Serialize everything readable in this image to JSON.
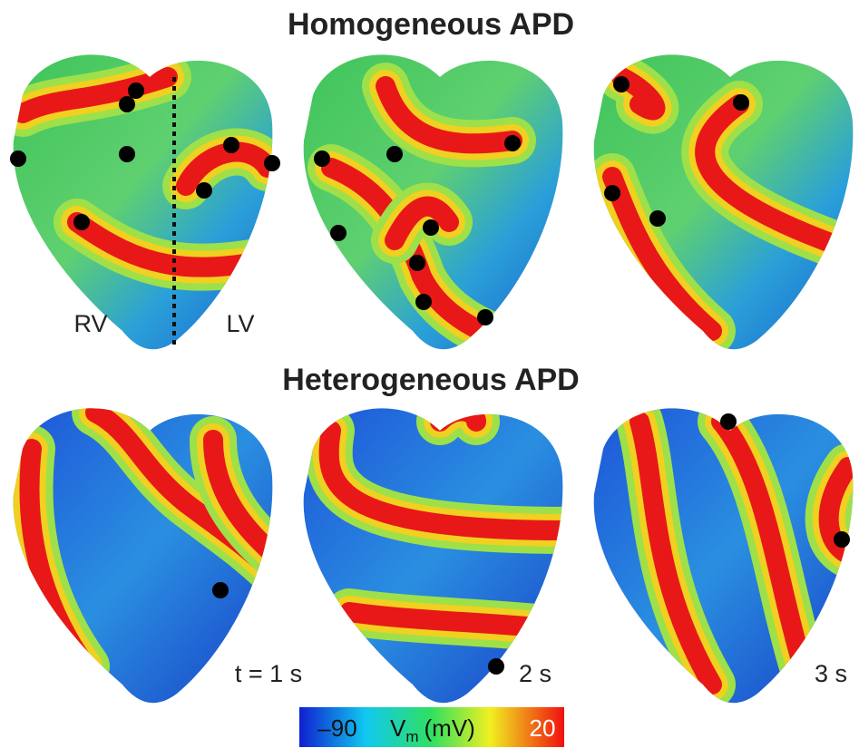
{
  "rows": [
    {
      "title": "Homogeneous APD",
      "panels": [
        {
          "labels": [
            "RV",
            "LV"
          ]
        },
        {
          "labels": []
        },
        {
          "labels": []
        }
      ]
    },
    {
      "title": "Heterogeneous APD",
      "panels": [
        {
          "labels": [
            "t = 1 s"
          ]
        },
        {
          "labels": [
            "2 s"
          ]
        },
        {
          "labels": [
            "3 s"
          ]
        }
      ]
    }
  ],
  "colorbar": {
    "min_label": "–90",
    "quantity": "V",
    "subscript": "m",
    "unit": "(mV)",
    "max_label": "20"
  }
}
